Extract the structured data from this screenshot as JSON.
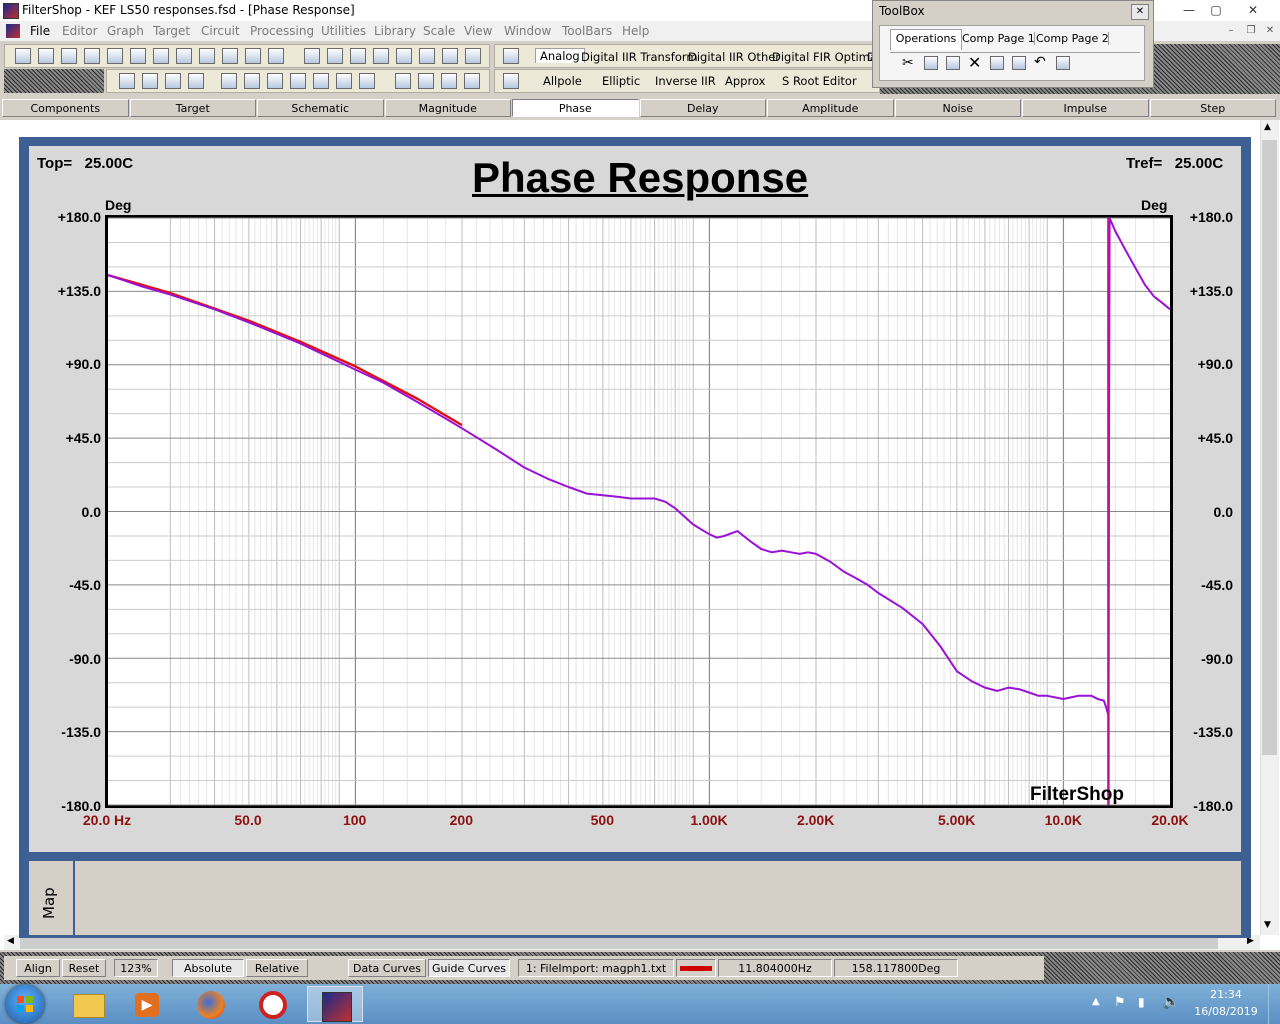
{
  "window": {
    "title": "FilterShop - KEF LS50 responses.fsd - [Phase Response]",
    "minimize": "—",
    "maximize": "▢",
    "close": "✕"
  },
  "menu": {
    "items": [
      "File",
      "Editor",
      "Graph",
      "Target",
      "Circuit",
      "Processing",
      "Utilities",
      "Library",
      "Scale",
      "View",
      "Window",
      "ToolBars",
      "Help"
    ],
    "dimmed": [
      "Editor",
      "Graph",
      "Target",
      "Circuit",
      "Processing",
      "Utilities",
      "Library",
      "Scale",
      "View",
      "Window",
      "ToolBars",
      "Help"
    ]
  },
  "toolbar": {
    "filter_tabs_row1": [
      "Analog",
      "Digital IIR Transform",
      "Digital IIR Other",
      "Digital FIR Optimal",
      "D"
    ],
    "filter_tabs_row2": [
      "Allpole",
      "Elliptic",
      "Inverse IIR",
      "Approx",
      "S Root Editor"
    ]
  },
  "toolbox": {
    "title": "ToolBox",
    "close": "✕",
    "tabs": [
      "Operations",
      "Comp Page 1",
      "Comp Page 2"
    ],
    "active_tab": "Operations"
  },
  "view_tabs": {
    "items": [
      "Components",
      "Target",
      "Schematic",
      "Magnitude",
      "Phase",
      "Delay",
      "Amplitude",
      "Noise",
      "Impulse",
      "Step"
    ],
    "active": "Phase"
  },
  "plot": {
    "title": "Phase Response",
    "top_label": "Top=",
    "top_value": "25.00C",
    "tref_label": "Tref=",
    "tref_value": "25.00C",
    "y_unit_left": "Deg",
    "y_unit_right": "Deg",
    "watermark": "FilterShop",
    "y_ticks": [
      "+180.0",
      "+135.0",
      "+90.0",
      "+45.0",
      "0.0",
      "-45.0",
      "-90.0",
      "-135.0",
      "-180.0"
    ],
    "x_ticks": [
      "20.0 Hz",
      "50.0",
      "100",
      "200",
      "500",
      "1.00K",
      "2.00K",
      "5.00K",
      "10.0K",
      "20.0K"
    ]
  },
  "chart_data": {
    "type": "line",
    "title": "Phase Response",
    "xlabel": "",
    "ylabel": "Deg",
    "x_scale": "log",
    "xlim": [
      20,
      20000
    ],
    "ylim": [
      -180,
      180
    ],
    "grid": true,
    "series": [
      {
        "color": "#9b10d8",
        "x": [
          20,
          25,
          30,
          40,
          50,
          60,
          70,
          80,
          100,
          120,
          150,
          180,
          200,
          250,
          300,
          350,
          400,
          450,
          500,
          550,
          600,
          650,
          700,
          750,
          800,
          900,
          1000,
          1050,
          1100,
          1200,
          1300,
          1400,
          1500,
          1600,
          1700,
          1800,
          1900,
          2000,
          2200,
          2400,
          2600,
          2800,
          3000,
          3500,
          4000,
          4500,
          5000,
          5500,
          6000,
          6500,
          7000,
          7500,
          8000,
          8500,
          9000,
          10000,
          10500,
          11000,
          12000,
          12500,
          13000,
          13200,
          13400,
          13500,
          14000,
          15000,
          16000,
          17000,
          18000,
          19000,
          20000
        ],
        "y": [
          145,
          138,
          133,
          124,
          116,
          109,
          103,
          97,
          87,
          79,
          67,
          57,
          51,
          38,
          27,
          20,
          15,
          11,
          10,
          9,
          8,
          8,
          8,
          6,
          2,
          -8,
          -14,
          -16,
          -15,
          -12,
          -18,
          -23,
          -25,
          -24,
          -25,
          -26,
          -25,
          -26,
          -31,
          -37,
          -41,
          -45,
          -50,
          -59,
          -69,
          -83,
          -98,
          -104,
          -108,
          -110,
          -108,
          -109,
          -111,
          -113,
          -113,
          -115,
          -114,
          -113,
          -113,
          -115,
          -116,
          -120,
          -125,
          180,
          172,
          160,
          149,
          139,
          132,
          128,
          124
        ]
      },
      {
        "color": "#e01010",
        "x": [
          20,
          30,
          50,
          70,
          100,
          150,
          200
        ],
        "y": [
          145,
          134,
          117,
          104,
          89,
          69,
          53
        ]
      }
    ]
  },
  "map": {
    "label": "Map"
  },
  "statusbar": {
    "align": "Align",
    "reset": "Reset",
    "zoom": "123%",
    "absolute": "Absolute",
    "relative": "Relative",
    "data_curves": "Data Curves",
    "guide_curves": "Guide Curves",
    "file": "1: FileImport: magph1.txt",
    "curve_color": "#d00000",
    "frequency": "11.804000Hz",
    "phase": "158.117800Deg"
  },
  "taskbar": {
    "time": "21:34",
    "date": "16/08/2019"
  }
}
